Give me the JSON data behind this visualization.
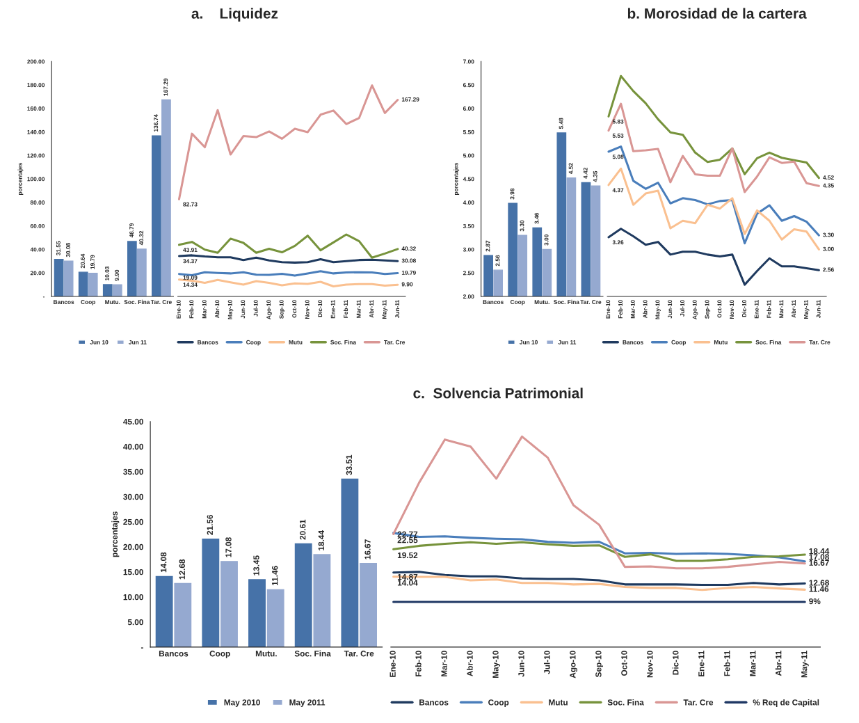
{
  "chart_data": [
    {
      "type": "bar",
      "ylabel": "porcentajes",
      "categories": [
        "Bancos",
        "Coop",
        "Mutu.",
        "Soc. Fina",
        "Tar. Cre"
      ],
      "ylim": [
        0,
        200
      ],
      "yticks": [
        {
          "value": 0,
          "label": "-"
        },
        {
          "value": 20,
          "label": "20.00"
        },
        {
          "value": 40,
          "label": "40.00"
        },
        {
          "value": 60,
          "label": "60.00"
        },
        {
          "value": 80,
          "label": "80.00"
        },
        {
          "value": 100,
          "label": "100.00"
        },
        {
          "value": 120,
          "label": "120.00"
        },
        {
          "value": 140,
          "label": "140.00"
        },
        {
          "value": 160,
          "label": "160.00"
        },
        {
          "value": 180,
          "label": "180.00"
        },
        {
          "value": 200,
          "label": "200.00"
        }
      ],
      "legend": "bottom",
      "series": [
        {
          "name": "Jun 10",
          "color": "#4672a8",
          "values": [
            31.55,
            20.64,
            10.03,
            46.79,
            136.74
          ],
          "value_labels": [
            "31.55",
            "20.64",
            "10.03",
            "46.79",
            "136.74"
          ]
        },
        {
          "name": "Jun 11",
          "color": "#95a9d0",
          "values": [
            30.08,
            19.79,
            9.9,
            40.32,
            167.29
          ],
          "value_labels": [
            "30.08",
            "19.79",
            "9.90",
            "40.32",
            "167.29"
          ]
        }
      ]
    },
    {
      "type": "line",
      "title": "a.    Liquidez",
      "categories": [
        "Ene-10",
        "Feb-10",
        "Mar-10",
        "Abr-10",
        "May-10",
        "Jun-10",
        "Jul-10",
        "Ago-10",
        "Sep-10",
        "Oct-10",
        "Nov-10",
        "Dic-10",
        "Ene-11",
        "Feb-11",
        "Mar-11",
        "Abr-11",
        "May-11",
        "Jun-11"
      ],
      "ylim": [
        0,
        200
      ],
      "tick_labels": "x",
      "legend": "bottom",
      "series": [
        {
          "name": "Bancos",
          "color": "#1f3a5f",
          "values": [
            34.37,
            35,
            34,
            33.3,
            33.3,
            31,
            33,
            30.7,
            29.2,
            28.8,
            29.2,
            31.7,
            29.2,
            30,
            31,
            31.2,
            30.7,
            30.08
          ],
          "value_labels": [
            "34.37",
            null,
            null,
            null,
            null,
            null,
            null,
            null,
            null,
            null,
            null,
            null,
            null,
            null,
            null,
            null,
            null,
            "30.08"
          ]
        },
        {
          "name": "Coop",
          "color": "#4a7ebb",
          "values": [
            19.09,
            18.1,
            20.6,
            20,
            19.6,
            20.6,
            18.5,
            18.3,
            19.3,
            17.7,
            19.6,
            21.5,
            19.6,
            20.4,
            20.6,
            20.4,
            19.1,
            19.79
          ],
          "value_labels": [
            "19.09",
            null,
            null,
            null,
            null,
            null,
            null,
            null,
            null,
            null,
            null,
            null,
            null,
            null,
            null,
            null,
            null,
            "19.79"
          ]
        },
        {
          "name": "Mutu",
          "color": "#fac090",
          "values": [
            14.34,
            13.4,
            11.5,
            14,
            12,
            10.1,
            13,
            11.5,
            9.5,
            11.1,
            10.7,
            12.4,
            8.6,
            10.1,
            10.5,
            10.5,
            9.2,
            9.9
          ],
          "value_labels": [
            "14.34",
            null,
            null,
            null,
            null,
            null,
            null,
            null,
            null,
            null,
            null,
            null,
            null,
            null,
            null,
            null,
            null,
            "9.90"
          ]
        },
        {
          "name": "Soc. Fina",
          "color": "#77933c",
          "values": [
            43.91,
            46.4,
            39.8,
            37.2,
            49.2,
            45.6,
            37.2,
            40.6,
            37.6,
            43,
            51.7,
            39.3,
            46,
            52.7,
            47,
            33,
            36.5,
            40.32
          ],
          "value_labels": [
            "43.91",
            null,
            null,
            null,
            null,
            null,
            null,
            null,
            null,
            null,
            null,
            null,
            null,
            null,
            null,
            null,
            null,
            "40.32"
          ]
        },
        {
          "name": "Tar. Cre",
          "color": "#d99694",
          "values": [
            82.73,
            138.5,
            127,
            158.6,
            120.8,
            136.5,
            135.6,
            140.4,
            134.2,
            142.7,
            139.8,
            154.7,
            158.2,
            146.7,
            151.9,
            179.6,
            156.1,
            167.29
          ],
          "value_labels": [
            "82.73",
            null,
            null,
            null,
            null,
            null,
            null,
            null,
            null,
            null,
            null,
            null,
            null,
            null,
            null,
            null,
            null,
            "167.29"
          ]
        }
      ]
    },
    {
      "type": "bar",
      "ylabel": "porcentajes",
      "categories": [
        "Bancos",
        "Coop",
        "Mutu.",
        "Soc. Fina",
        "Tar. Cre"
      ],
      "ylim": [
        2,
        7
      ],
      "yticks": [
        {
          "value": 2,
          "label": "2.00"
        },
        {
          "value": 2.5,
          "label": "2.50"
        },
        {
          "value": 3,
          "label": "3.00"
        },
        {
          "value": 3.5,
          "label": "3.50"
        },
        {
          "value": 4,
          "label": "4.00"
        },
        {
          "value": 4.5,
          "label": "4.50"
        },
        {
          "value": 5,
          "label": "5.00"
        },
        {
          "value": 5.5,
          "label": "5.50"
        },
        {
          "value": 6,
          "label": "6.00"
        },
        {
          "value": 6.5,
          "label": "6.50"
        },
        {
          "value": 7,
          "label": "7.00"
        }
      ],
      "legend": "bottom",
      "series": [
        {
          "name": "Jun 10",
          "color": "#4672a8",
          "values": [
            2.87,
            3.98,
            3.46,
            5.48,
            4.42
          ],
          "value_labels": [
            "2.87",
            "3.98",
            "3.46",
            "5.48",
            "4.42"
          ]
        },
        {
          "name": "Jun 11",
          "color": "#95a9d0",
          "values": [
            2.56,
            3.3,
            3,
            4.52,
            4.35
          ],
          "value_labels": [
            "2.56",
            "3.30",
            "3.00",
            "4.52",
            "4.35"
          ]
        }
      ]
    },
    {
      "type": "line",
      "title": "b. Morosidad de la cartera",
      "categories": [
        "Ene-10",
        "Feb-10",
        "Mar-10",
        "Abr-10",
        "May-10",
        "Jun-10",
        "Jul-10",
        "Ago-10",
        "Sep-10",
        "Oct-10",
        "Nov-10",
        "Dic-10",
        "Ene-11",
        "Feb-11",
        "Mar-11",
        "Abr-11",
        "May-11",
        "Jun-11"
      ],
      "ylim": [
        2,
        7
      ],
      "tick_labels": "x",
      "legend": "bottom",
      "series": [
        {
          "name": "Bancos",
          "color": "#1f3a5f",
          "values": [
            3.26,
            3.44,
            3.28,
            3.1,
            3.16,
            2.89,
            2.95,
            2.95,
            2.89,
            2.85,
            2.89,
            2.25,
            2.54,
            2.81,
            2.64,
            2.64,
            2.6,
            2.56
          ],
          "value_labels": [
            "3.26",
            null,
            null,
            null,
            null,
            null,
            null,
            null,
            null,
            null,
            null,
            null,
            null,
            null,
            null,
            null,
            null,
            "2.56"
          ]
        },
        {
          "name": "Coop",
          "color": "#4a7ebb",
          "values": [
            5.08,
            5.19,
            4.46,
            4.29,
            4.42,
            3.98,
            4.09,
            4.05,
            3.96,
            4.03,
            4.05,
            3.13,
            3.76,
            3.94,
            3.61,
            3.71,
            3.59,
            3.3
          ],
          "value_labels": [
            "5.08",
            null,
            null,
            null,
            null,
            null,
            null,
            null,
            null,
            null,
            null,
            null,
            null,
            null,
            null,
            null,
            null,
            "3.30"
          ]
        },
        {
          "name": "Mutu",
          "color": "#fac090",
          "values": [
            4.37,
            4.72,
            3.95,
            4.19,
            4.25,
            3.45,
            3.61,
            3.56,
            3.95,
            3.87,
            4.09,
            3.33,
            3.83,
            3.61,
            3.21,
            3.43,
            3.38,
            3
          ],
          "value_labels": [
            "4.37",
            null,
            null,
            null,
            null,
            null,
            null,
            null,
            null,
            null,
            null,
            null,
            null,
            null,
            null,
            null,
            null,
            "3.00"
          ]
        },
        {
          "name": "Soc. Fina",
          "color": "#77933c",
          "values": [
            5.83,
            6.69,
            6.37,
            6.11,
            5.77,
            5.49,
            5.44,
            5.06,
            4.86,
            4.91,
            5.15,
            4.6,
            4.94,
            5.06,
            4.95,
            4.9,
            4.85,
            4.52
          ],
          "value_labels": [
            "5.83",
            null,
            null,
            null,
            null,
            null,
            null,
            null,
            null,
            null,
            null,
            null,
            null,
            null,
            null,
            null,
            null,
            "4.52"
          ]
        },
        {
          "name": "Tar. Cre",
          "color": "#d99694",
          "values": [
            5.53,
            6.1,
            5.09,
            5.11,
            5.14,
            4.43,
            4.99,
            4.6,
            4.57,
            4.57,
            5.15,
            4.22,
            4.55,
            4.96,
            4.84,
            4.87,
            4.41,
            4.35
          ],
          "value_labels": [
            "5.53",
            null,
            null,
            null,
            null,
            null,
            null,
            null,
            null,
            null,
            null,
            null,
            null,
            null,
            null,
            null,
            null,
            "4.35"
          ]
        }
      ]
    },
    {
      "type": "bar",
      "ylabel": "porcentajes",
      "categories": [
        "Bancos",
        "Coop",
        "Mutu.",
        "Soc. Fina",
        "Tar. Cre"
      ],
      "ylim": [
        0,
        45
      ],
      "yticks": [
        {
          "value": 0,
          "label": "-"
        },
        {
          "value": 5,
          "label": "5.00"
        },
        {
          "value": 10,
          "label": "10.00"
        },
        {
          "value": 15,
          "label": "15.00"
        },
        {
          "value": 20,
          "label": "20.00"
        },
        {
          "value": 25,
          "label": "25.00"
        },
        {
          "value": 30,
          "label": "30.00"
        },
        {
          "value": 35,
          "label": "35.00"
        },
        {
          "value": 40,
          "label": "40.00"
        },
        {
          "value": 45,
          "label": "45.00"
        }
      ],
      "legend": "bottom",
      "series": [
        {
          "name": "May 2010",
          "color": "#4672a8",
          "values": [
            14.08,
            21.56,
            13.45,
            20.61,
            33.51
          ],
          "value_labels": [
            "14.08",
            "21.56",
            "13.45",
            "20.61",
            "33.51"
          ]
        },
        {
          "name": "May 2011",
          "color": "#95a9d0",
          "values": [
            12.68,
            17.08,
            11.46,
            18.44,
            16.67
          ],
          "value_labels": [
            "12.68",
            "17.08",
            "11.46",
            "18.44",
            "16.67"
          ]
        }
      ]
    },
    {
      "type": "line",
      "title": "c.  Solvencia Patrimonial",
      "categories": [
        "Ene-10",
        "Feb-10",
        "Mar-10",
        "Abr-10",
        "May-10",
        "Jun-10",
        "Jul-10",
        "Ago-10",
        "Sep-10",
        "Oct-10",
        "Nov-10",
        "Dic-10",
        "Ene-11",
        "Feb-11",
        "Mar-11",
        "Abr-11",
        "May-11"
      ],
      "ylim": [
        0,
        45
      ],
      "tick_labels": "x",
      "legend": "bottom",
      "series": [
        {
          "name": "Bancos",
          "color": "#1f3a5f",
          "values": [
            14.87,
            15,
            14.4,
            14.1,
            14.1,
            13.7,
            13.6,
            13.6,
            13.3,
            12.5,
            12.5,
            12.5,
            12.4,
            12.4,
            12.8,
            12.5,
            12.68
          ],
          "value_labels": [
            "14.87",
            null,
            null,
            null,
            null,
            null,
            null,
            null,
            null,
            null,
            null,
            null,
            null,
            null,
            null,
            null,
            "12.68"
          ]
        },
        {
          "name": "Coop",
          "color": "#4a7ebb",
          "values": [
            22.77,
            22,
            22.1,
            21.8,
            21.6,
            21.5,
            21,
            20.8,
            21,
            18.7,
            18.8,
            18.6,
            18.7,
            18.6,
            18.3,
            17.9,
            17.08
          ],
          "value_labels": [
            "22.77",
            null,
            null,
            null,
            null,
            null,
            null,
            null,
            null,
            null,
            null,
            null,
            null,
            null,
            null,
            null,
            "17.08"
          ]
        },
        {
          "name": "Mutu",
          "color": "#fac090",
          "values": [
            14.04,
            14,
            14,
            13.3,
            13.5,
            12.8,
            12.8,
            12.5,
            12.6,
            12,
            11.8,
            11.8,
            11.4,
            11.8,
            12,
            11.7,
            11.46
          ],
          "value_labels": [
            "14.04",
            null,
            null,
            null,
            null,
            null,
            null,
            null,
            null,
            null,
            null,
            null,
            null,
            null,
            null,
            null,
            "11.46"
          ]
        },
        {
          "name": "Soc. Fina",
          "color": "#77933c",
          "values": [
            19.52,
            20.2,
            20.6,
            20.9,
            20.6,
            20.9,
            20.5,
            20.2,
            20.3,
            18,
            18.5,
            17.2,
            17.2,
            17.5,
            18,
            18.1,
            18.44
          ],
          "value_labels": [
            "19.52",
            null,
            null,
            null,
            null,
            null,
            null,
            null,
            null,
            null,
            null,
            null,
            null,
            null,
            null,
            null,
            "18.44"
          ]
        },
        {
          "name": "Tar. Cre",
          "color": "#d99694",
          "values": [
            22.55,
            32.8,
            41.4,
            40,
            33.6,
            42,
            37.8,
            28.3,
            24.4,
            16,
            16.1,
            15.7,
            15.7,
            16,
            16.5,
            17,
            16.67
          ],
          "value_labels": [
            "22.55",
            null,
            null,
            null,
            null,
            null,
            null,
            null,
            null,
            null,
            null,
            null,
            null,
            null,
            null,
            null,
            "16.67"
          ]
        },
        {
          "name": "% Req de Capital",
          "color": "#1f3864",
          "values": [
            9,
            9,
            9,
            9,
            9,
            9,
            9,
            9,
            9,
            9,
            9,
            9,
            9,
            9,
            9,
            9,
            9
          ],
          "value_labels": [
            null,
            null,
            null,
            null,
            null,
            null,
            null,
            null,
            null,
            null,
            null,
            null,
            null,
            null,
            null,
            null,
            "9%"
          ]
        }
      ]
    }
  ]
}
